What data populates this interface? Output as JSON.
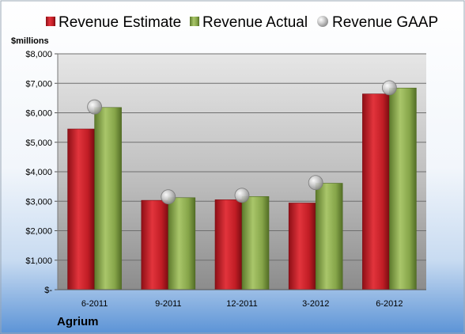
{
  "chart_data": {
    "type": "bar",
    "company": "Agrium",
    "ylabel": "$millions",
    "categories": [
      "6-2011",
      "9-2011",
      "12-2011",
      "3-2012",
      "6-2012"
    ],
    "series": [
      {
        "name": "Revenue Estimate",
        "kind": "bar",
        "color": "#c8202a",
        "values": [
          5450,
          3030,
          3050,
          2940,
          6640
        ]
      },
      {
        "name": "Revenue Actual",
        "kind": "bar",
        "color": "#8fae4e",
        "values": [
          6180,
          3120,
          3160,
          3610,
          6840
        ]
      },
      {
        "name": "Revenue GAAP",
        "kind": "marker",
        "color": "#b8b8b8",
        "values": [
          6200,
          3150,
          3200,
          3630,
          6850
        ]
      }
    ],
    "ylim": [
      0,
      8000
    ],
    "yticks": [
      0,
      1000,
      2000,
      3000,
      4000,
      5000,
      6000,
      7000,
      8000
    ],
    "ytick_labels": [
      "$-",
      "$1,000",
      "$2,000",
      "$3,000",
      "$4,000",
      "$5,000",
      "$6,000",
      "$7,000",
      "$8,000"
    ],
    "grid": true,
    "legend_position": "top"
  }
}
